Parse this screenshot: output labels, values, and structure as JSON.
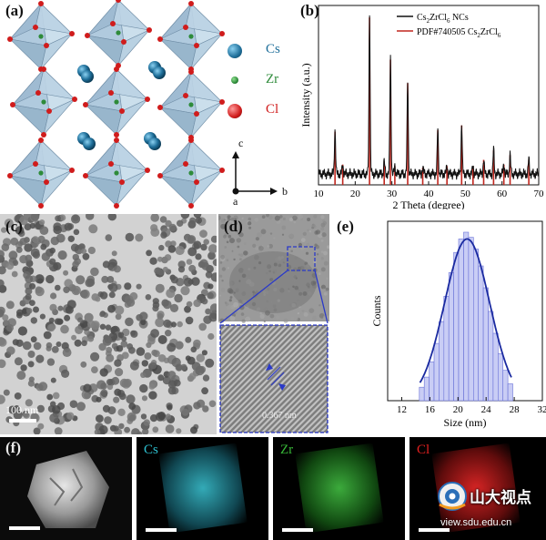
{
  "panels": {
    "a": {
      "label": "(a)",
      "legend": [
        {
          "name": "Cs",
          "color": "#1f6f9a"
        },
        {
          "name": "Zr",
          "color": "#2e8b3a"
        },
        {
          "name": "Cl",
          "color": "#d01c1c"
        }
      ],
      "axes": {
        "c": "c",
        "b": "b",
        "a": "a"
      }
    },
    "b": {
      "label": "(b)"
    },
    "c": {
      "label": "(c)",
      "scale_bar": "100 nm"
    },
    "d": {
      "label": "(d)",
      "lattice_spacing": "0.367 nm"
    },
    "e": {
      "label": "(e)"
    },
    "f": {
      "label": "(f)",
      "maps": [
        {
          "name": "Cs",
          "color": "#2ec0d0"
        },
        {
          "name": "Zr",
          "color": "#38b838"
        },
        {
          "name": "Cl",
          "color": "#e02020"
        }
      ]
    }
  },
  "watermark": {
    "text_cn": "山大视点",
    "url": "view.sdu.edu.cn"
  },
  "chart_data": [
    {
      "id": "xrd",
      "type": "line",
      "title": "",
      "xlabel": "2 Theta (degree)",
      "ylabel": "Intensity (a.u.)",
      "xlim": [
        10,
        70
      ],
      "xticks": [
        10,
        20,
        30,
        40,
        50,
        60,
        70
      ],
      "y_ticks_shown": false,
      "legend_position": "top-right",
      "series": [
        {
          "name": "Cs2ZrCl6 NCs",
          "color": "#111111",
          "style": "line"
        },
        {
          "name": "PDF#740505 Cs2ZrCl6",
          "color": "#c0261e",
          "style": "sticks"
        }
      ],
      "peaks": [
        {
          "x": 14.5,
          "y": 0.27
        },
        {
          "x": 16.6,
          "y": 0.06
        },
        {
          "x": 23.9,
          "y": 1.0
        },
        {
          "x": 27.9,
          "y": 0.08
        },
        {
          "x": 29.6,
          "y": 0.73
        },
        {
          "x": 30.8,
          "y": 0.05
        },
        {
          "x": 34.3,
          "y": 0.58
        },
        {
          "x": 38.4,
          "y": 0.04
        },
        {
          "x": 42.5,
          "y": 0.28
        },
        {
          "x": 45.0,
          "y": 0.05
        },
        {
          "x": 49.0,
          "y": 0.31
        },
        {
          "x": 52.1,
          "y": 0.05
        },
        {
          "x": 55.0,
          "y": 0.09
        },
        {
          "x": 57.7,
          "y": 0.15
        },
        {
          "x": 60.5,
          "y": 0.06
        },
        {
          "x": 62.2,
          "y": 0.12
        },
        {
          "x": 67.3,
          "y": 0.09
        }
      ]
    },
    {
      "id": "size-distribution",
      "type": "bar",
      "title": "",
      "xlabel": "Size (nm)",
      "ylabel": "Counts",
      "xlim": [
        10,
        32
      ],
      "xticks": [
        12,
        16,
        20,
        24,
        28,
        32
      ],
      "y_ticks_shown": false,
      "bar_color": "#c9cdf5",
      "bar_edge": "#6a72d8",
      "fit_color": "#1a2aa0",
      "bins": [
        14.5,
        15.2,
        15.9,
        16.6,
        17.3,
        18.0,
        18.7,
        19.4,
        20.1,
        20.8,
        21.5,
        22.2,
        22.9,
        23.6,
        24.3,
        25.0,
        25.7,
        26.4,
        27.1
      ],
      "values": [
        0.08,
        0.14,
        0.23,
        0.34,
        0.47,
        0.62,
        0.76,
        0.88,
        0.96,
        1.0,
        0.97,
        0.9,
        0.8,
        0.67,
        0.53,
        0.4,
        0.28,
        0.18,
        0.1
      ],
      "fit": {
        "type": "gaussian",
        "mean": 21.3,
        "peak": 0.96
      }
    }
  ]
}
